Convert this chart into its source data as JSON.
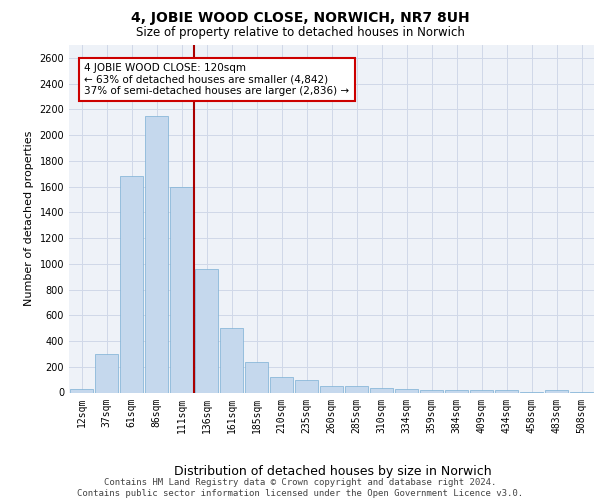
{
  "title_line1": "4, JOBIE WOOD CLOSE, NORWICH, NR7 8UH",
  "title_line2": "Size of property relative to detached houses in Norwich",
  "xlabel": "Distribution of detached houses by size in Norwich",
  "ylabel": "Number of detached properties",
  "footer_line1": "Contains HM Land Registry data © Crown copyright and database right 2024.",
  "footer_line2": "Contains public sector information licensed under the Open Government Licence v3.0.",
  "annotation_line1": "4 JOBIE WOOD CLOSE: 120sqm",
  "annotation_line2": "← 63% of detached houses are smaller (4,842)",
  "annotation_line3": "37% of semi-detached houses are larger (2,836) →",
  "bar_labels": [
    "12sqm",
    "37sqm",
    "61sqm",
    "86sqm",
    "111sqm",
    "136sqm",
    "161sqm",
    "185sqm",
    "210sqm",
    "235sqm",
    "260sqm",
    "285sqm",
    "310sqm",
    "334sqm",
    "359sqm",
    "384sqm",
    "409sqm",
    "434sqm",
    "458sqm",
    "483sqm",
    "508sqm"
  ],
  "bar_heights": [
    25,
    300,
    1680,
    2150,
    1600,
    960,
    500,
    240,
    120,
    100,
    50,
    50,
    35,
    30,
    20,
    20,
    20,
    20,
    5,
    20,
    5
  ],
  "bar_color": "#c5d8ed",
  "bar_edge_color": "#7bafd4",
  "grid_color": "#d0d8e8",
  "bg_color": "#eef2f8",
  "vline_color": "#aa0000",
  "annotation_box_color": "#cc0000",
  "ylim": [
    0,
    2700
  ],
  "yticks": [
    0,
    200,
    400,
    600,
    800,
    1000,
    1200,
    1400,
    1600,
    1800,
    2000,
    2200,
    2400,
    2600
  ],
  "title_fontsize": 10,
  "subtitle_fontsize": 8.5,
  "ylabel_fontsize": 8,
  "xlabel_fontsize": 9,
  "tick_fontsize": 7,
  "annotation_fontsize": 7.5,
  "footer_fontsize": 6.5
}
